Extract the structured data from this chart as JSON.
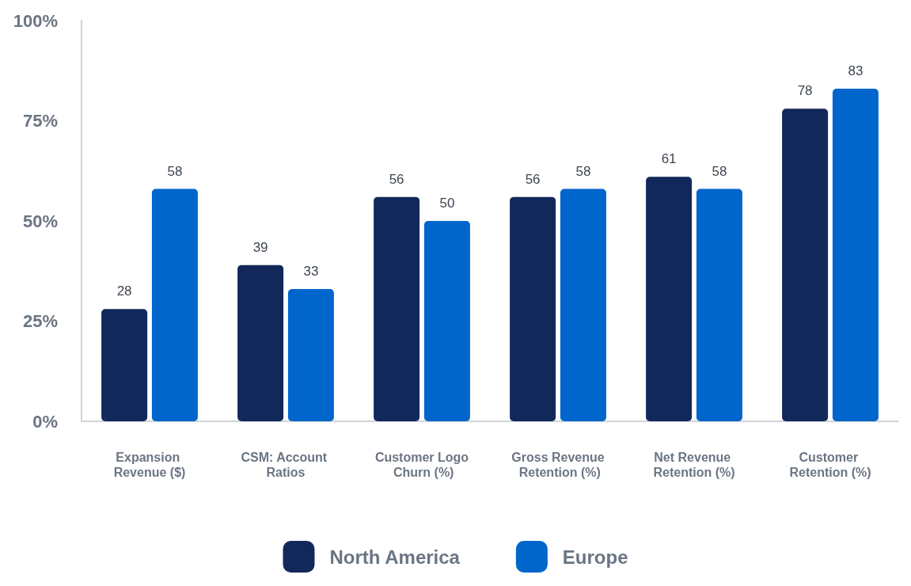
{
  "chart_data": {
    "type": "bar",
    "categories": [
      "Expansion Revenue ($)",
      "CSM: Account Ratios",
      "Customer Logo Churn (%)",
      "Gross Revenue Retention (%)",
      "Net Revenue Retention (%)",
      "Customer Retention (%)"
    ],
    "series": [
      {
        "name": "North America",
        "color": "#13285a",
        "values": [
          28,
          39,
          56,
          56,
          61,
          78
        ]
      },
      {
        "name": "Europe",
        "color": "#0066cc",
        "values": [
          58,
          33,
          50,
          58,
          58,
          83
        ]
      }
    ],
    "ylim": [
      0,
      100
    ],
    "yticks": [
      {
        "value": 0,
        "label": "0%"
      },
      {
        "value": 25,
        "label": "25%"
      },
      {
        "value": 50,
        "label": "50%"
      },
      {
        "value": 75,
        "label": "75%"
      },
      {
        "value": 100,
        "label": "100%"
      }
    ],
    "data_labels": true,
    "grid": false,
    "legend": "bottom"
  }
}
